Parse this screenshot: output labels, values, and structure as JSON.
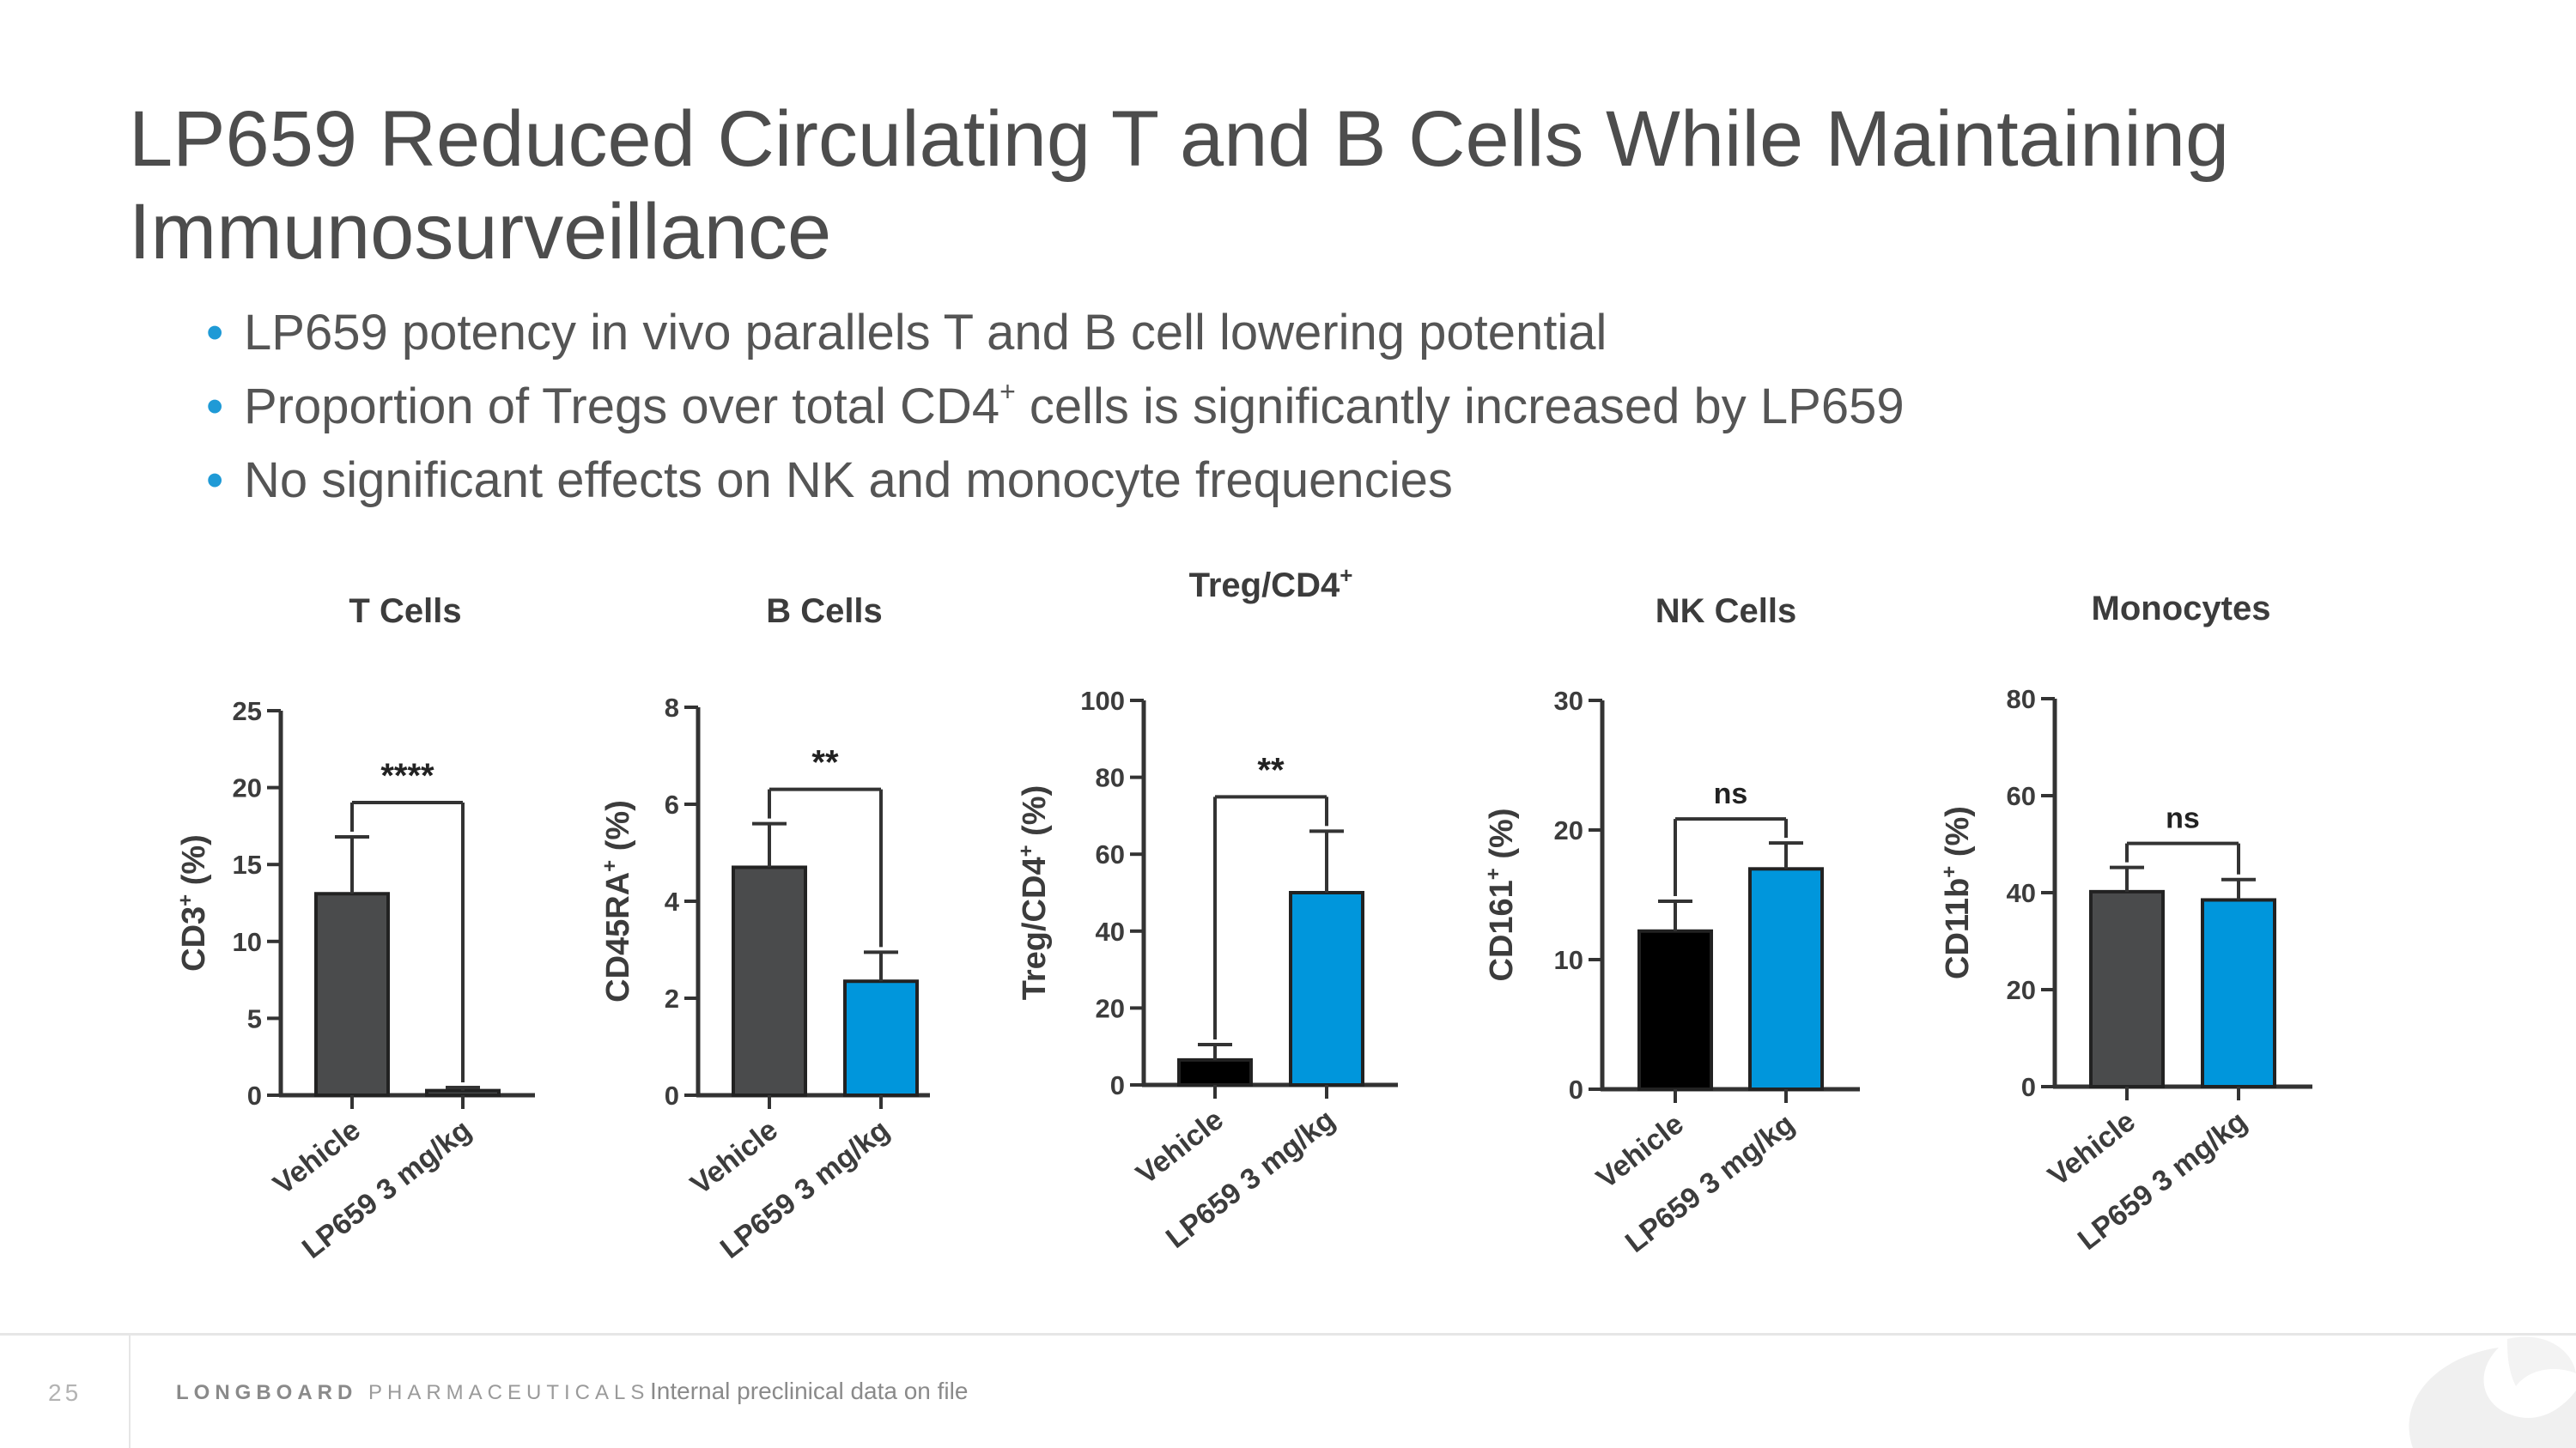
{
  "slide": {
    "title": "LP659 Reduced Circulating T and B Cells While Maintaining Immunosurveillance",
    "bullets": [
      {
        "before": "LP659 potency in vivo parallels T and B cell lowering potential",
        "sup": "",
        "after": ""
      },
      {
        "before": "Proportion of Tregs over total CD4",
        "sup": "+",
        "after": " cells is significantly increased by LP659"
      },
      {
        "before": "No significant effects on NK and monocyte frequencies",
        "sup": "",
        "after": ""
      }
    ]
  },
  "colors": {
    "vehicle_gray": "#4a4b4c",
    "vehicle_black": "#000000",
    "lp659_blue": "#0096dc",
    "text_dark": "#3c3c3c"
  },
  "chart_data": [
    {
      "type": "bar",
      "title": "T Cells",
      "title_sup": "",
      "ylabel": "CD3",
      "ylabel_sup": "+",
      "ylabel_suffix": " (%)",
      "ylim": [
        0,
        25
      ],
      "yticks": [
        0,
        5,
        10,
        15,
        20,
        25
      ],
      "categories": [
        "Vehicle",
        "LP659 3 mg/kg"
      ],
      "values": [
        13.1,
        0.3
      ],
      "errors": [
        3.7,
        0.2
      ],
      "bar_colors": [
        "#4a4b4c",
        "#4a4b4c"
      ],
      "significance": "****"
    },
    {
      "type": "bar",
      "title": "B Cells",
      "title_sup": "",
      "ylabel": "CD45RA",
      "ylabel_sup": "+",
      "ylabel_suffix": " (%)",
      "ylim": [
        0,
        8
      ],
      "yticks": [
        0,
        2,
        4,
        6,
        8
      ],
      "categories": [
        "Vehicle",
        "LP659 3 mg/kg"
      ],
      "values": [
        4.7,
        2.35
      ],
      "errors": [
        0.9,
        0.6
      ],
      "bar_colors": [
        "#4a4b4c",
        "#0096dc"
      ],
      "significance": "**"
    },
    {
      "type": "bar",
      "title": "Treg/CD4",
      "title_sup": "+",
      "ylabel": "Treg/CD4",
      "ylabel_sup": "+",
      "ylabel_suffix": " (%)",
      "ylim": [
        0,
        100
      ],
      "yticks": [
        0,
        20,
        40,
        60,
        80,
        100
      ],
      "categories": [
        "Vehicle",
        "LP659 3 mg/kg"
      ],
      "values": [
        6.5,
        50
      ],
      "errors": [
        4.0,
        16
      ],
      "bar_colors": [
        "#000000",
        "#0096dc"
      ],
      "significance": "**"
    },
    {
      "type": "bar",
      "title": "NK Cells",
      "title_sup": "",
      "ylabel": "CD161",
      "ylabel_sup": "+",
      "ylabel_suffix": " (%)",
      "ylim": [
        0,
        30
      ],
      "yticks": [
        0,
        10,
        20,
        30
      ],
      "categories": [
        "Vehicle",
        "LP659 3 mg/kg"
      ],
      "values": [
        12.2,
        17.0
      ],
      "errors": [
        2.3,
        2.0
      ],
      "bar_colors": [
        "#000000",
        "#0096dc"
      ],
      "significance": "ns"
    },
    {
      "type": "bar",
      "title": "Monocytes",
      "title_sup": "",
      "ylabel": "CD11b",
      "ylabel_sup": "+",
      "ylabel_suffix": " (%)",
      "ylim": [
        0,
        80
      ],
      "yticks": [
        0,
        20,
        40,
        60,
        80
      ],
      "categories": [
        "Vehicle",
        "LP659 3 mg/kg"
      ],
      "values": [
        40.2,
        38.5
      ],
      "errors": [
        5.0,
        4.2
      ],
      "bar_colors": [
        "#4a4b4c",
        "#0096dc"
      ],
      "significance": "ns"
    }
  ],
  "footer": {
    "page_number": "25",
    "brand_bold": "LONGBOARD",
    "brand_rest": " PHARMACEUTICALS",
    "note": "Internal preclinical data on file"
  }
}
